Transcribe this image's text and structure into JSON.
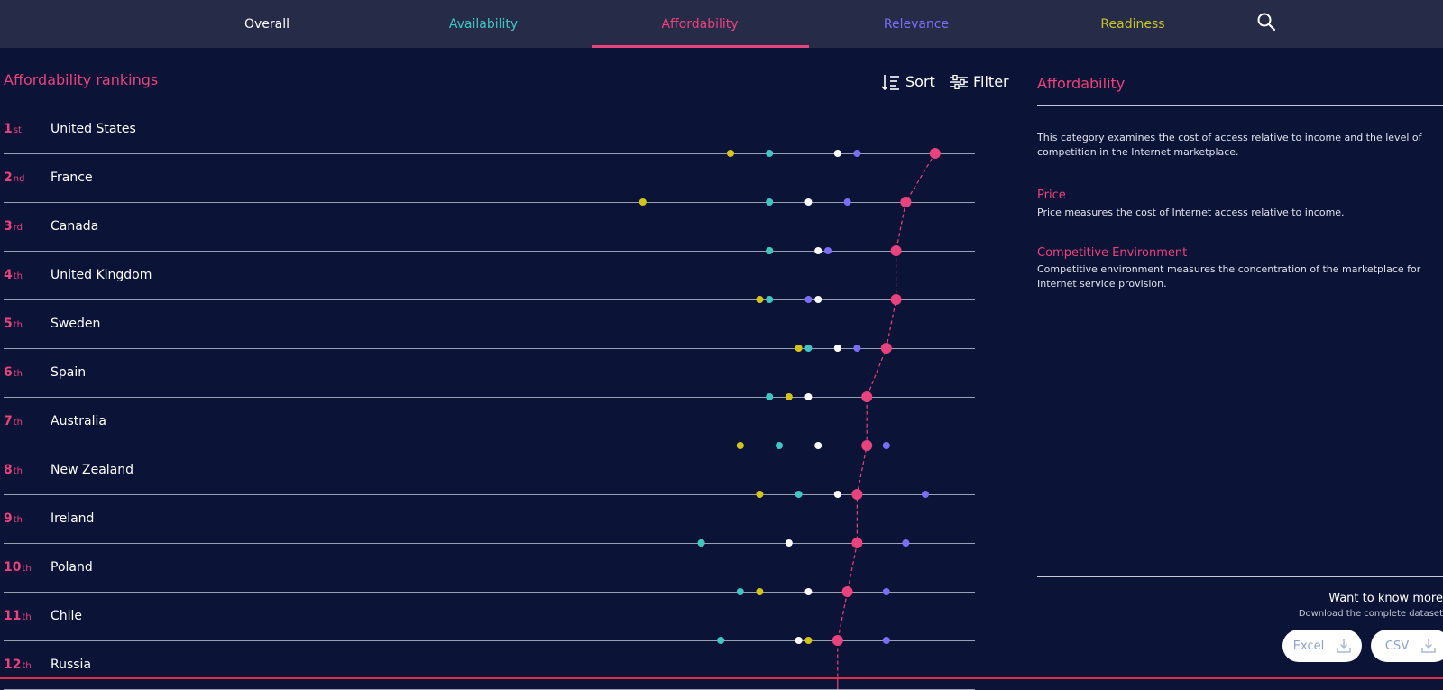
{
  "nav": {
    "tabs": [
      {
        "label": "Overall",
        "color": "#ffffff"
      },
      {
        "label": "Availability",
        "color": "#3fc6c2"
      },
      {
        "label": "Affordability",
        "color": "#e8437c"
      },
      {
        "label": "Relevance",
        "color": "#7b6ef6"
      },
      {
        "label": "Readiness",
        "color": "#c9c12a"
      }
    ],
    "active_tab": "Affordability",
    "search_icon": "search-icon"
  },
  "rankings": {
    "title": "Affordability rankings",
    "sort_label": "Sort",
    "filter_label": "Filter",
    "rows": [
      {
        "rank": "1",
        "suffix": "st",
        "country": "United States"
      },
      {
        "rank": "2",
        "suffix": "nd",
        "country": "France"
      },
      {
        "rank": "3",
        "suffix": "rd",
        "country": "Canada"
      },
      {
        "rank": "4",
        "suffix": "th",
        "country": "United Kingdom"
      },
      {
        "rank": "5",
        "suffix": "th",
        "country": "Sweden"
      },
      {
        "rank": "6",
        "suffix": "th",
        "country": "Spain"
      },
      {
        "rank": "7",
        "suffix": "th",
        "country": "Australia"
      },
      {
        "rank": "8",
        "suffix": "th",
        "country": "New Zealand"
      },
      {
        "rank": "9",
        "suffix": "th",
        "country": "Ireland"
      },
      {
        "rank": "10",
        "suffix": "th",
        "country": "Poland"
      },
      {
        "rank": "11",
        "suffix": "th",
        "country": "Chile"
      },
      {
        "rank": "12",
        "suffix": "th",
        "country": "Russia"
      }
    ]
  },
  "chart_data": {
    "type": "scatter",
    "title": "Affordability rankings",
    "xlim": [
      0,
      100
    ],
    "series": [
      {
        "key": "readiness",
        "color": "#d4c41a",
        "values": [
          75,
          66,
          79,
          78,
          82,
          81,
          76,
          78,
          72,
          78,
          83,
          0
        ]
      },
      {
        "key": "availability",
        "color": "#3fc6c2",
        "values": [
          79,
          79,
          79,
          79,
          83,
          79,
          80,
          82,
          72,
          76,
          74,
          0
        ]
      },
      {
        "key": "overall",
        "color": "#ffffff",
        "values": [
          86,
          83,
          84,
          84,
          86,
          83,
          84,
          86,
          81,
          83,
          82,
          0
        ]
      },
      {
        "key": "relevance",
        "color": "#7b6ef6",
        "values": [
          88,
          87,
          85,
          83,
          88,
          0,
          91,
          95,
          93,
          91,
          91,
          0
        ]
      },
      {
        "key": "affordability",
        "color": "#e8437c",
        "values": [
          96,
          93,
          92,
          92,
          91,
          89,
          89,
          88,
          88,
          87,
          86,
          86
        ]
      }
    ]
  },
  "info": {
    "title": "Affordability",
    "description": "This category examines the cost of access relative to income and the level of competition in the Internet marketplace.",
    "price_title": "Price",
    "price_text": "Price measures the cost of Internet access relative to income.",
    "comp_title": "Competitive Environment",
    "comp_text": "Competitive environment measures the concentration of the marketplace for Internet service provision.",
    "know_more": "Want to know more",
    "download_text": "Download the complete dataset",
    "excel_label": "Excel",
    "csv_label": "CSV"
  }
}
